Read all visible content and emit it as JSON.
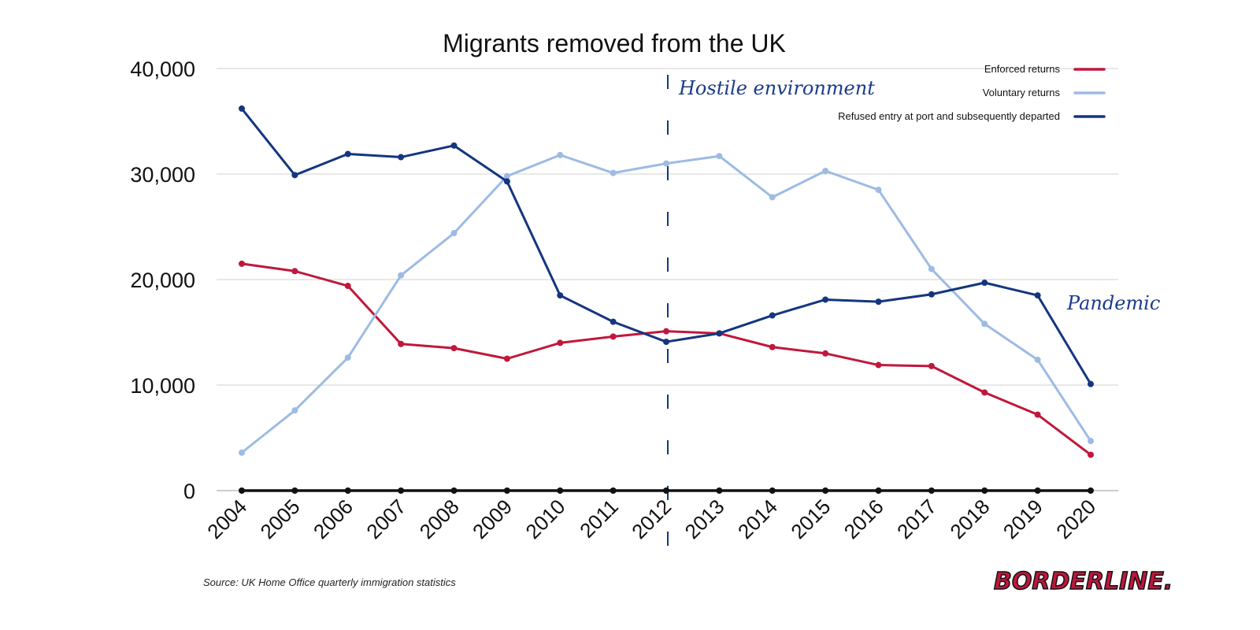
{
  "chart_data": {
    "type": "line",
    "title": "Migrants removed from the UK",
    "xlabel": "",
    "ylabel": "",
    "x": [
      2004,
      2005,
      2006,
      2007,
      2008,
      2009,
      2010,
      2011,
      2012,
      2013,
      2014,
      2015,
      2016,
      2017,
      2018,
      2019,
      2020
    ],
    "x_tick_labels": [
      "2004",
      "2005",
      "2006",
      "2007",
      "2008",
      "2009",
      "2010",
      "2011",
      "2012",
      "2013",
      "2014",
      "2015",
      "2016",
      "2017",
      "2018",
      "2019",
      "2020"
    ],
    "ylim": [
      0,
      40000
    ],
    "y_ticks": [
      0,
      10000,
      20000,
      30000,
      40000
    ],
    "y_tick_labels": [
      "0",
      "10,000",
      "20,000",
      "30,000",
      "40,000"
    ],
    "grid": true,
    "legend_position": "top-right",
    "series": [
      {
        "name": "Enforced returns",
        "color": "#c0183c",
        "values": [
          21500,
          20800,
          19400,
          13900,
          13500,
          12500,
          14000,
          14600,
          15100,
          14900,
          13600,
          13000,
          11900,
          11800,
          9300,
          7200,
          3400
        ]
      },
      {
        "name": "Voluntary returns",
        "color": "#9dbbe3",
        "values": [
          3600,
          7600,
          12600,
          20400,
          24400,
          29800,
          31800,
          30100,
          31000,
          31700,
          27800,
          30300,
          28500,
          21000,
          15800,
          12400,
          4700
        ]
      },
      {
        "name": "Refused entry at port and subsequently departed",
        "color": "#143580",
        "values": [
          36200,
          29900,
          31900,
          31600,
          32700,
          29300,
          18500,
          16000,
          14100,
          14900,
          16600,
          18100,
          17900,
          18600,
          19700,
          18500,
          10100
        ]
      },
      {
        "color": "#111111",
        "values": [
          0,
          0,
          0,
          0,
          0,
          0,
          0,
          0,
          0,
          0,
          0,
          0,
          0,
          0,
          0,
          0,
          0
        ]
      }
    ],
    "annotations": [
      {
        "text": "Hostile environment",
        "x": 2012,
        "style": "dashed vertical line"
      },
      {
        "text": "Pandemic",
        "x": 2020
      }
    ]
  },
  "source": "Source: UK Home Office quarterly immigration statistics",
  "logo": "BORDERLINE."
}
